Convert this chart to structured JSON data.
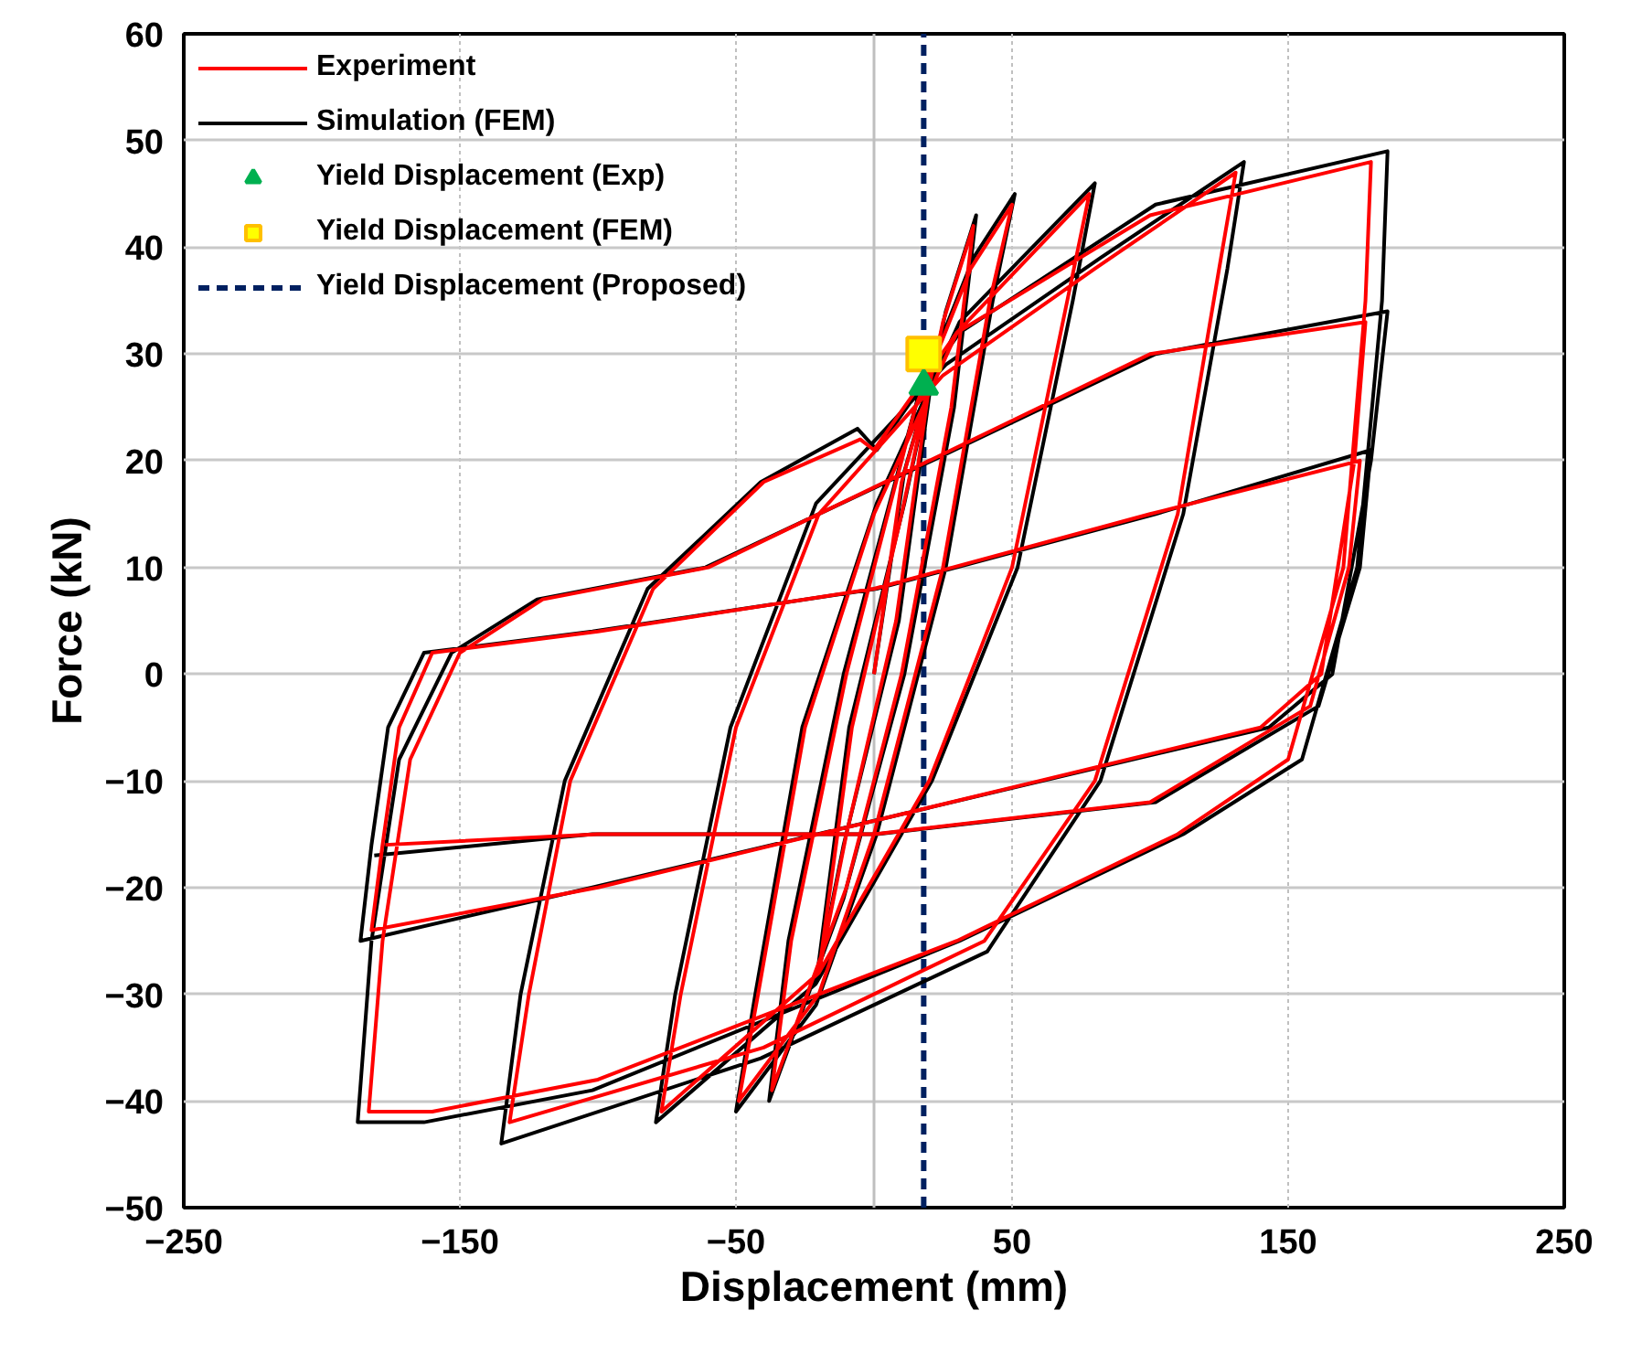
{
  "chart_data": {
    "type": "line",
    "xlabel": "Displacement (mm)",
    "ylabel": "Force (kN)",
    "xlim": [
      -250,
      250
    ],
    "ylim": [
      -50,
      60
    ],
    "xticks": [
      -250,
      -150,
      -50,
      50,
      150,
      250
    ],
    "yticks": [
      -50,
      -40,
      -30,
      -20,
      -10,
      0,
      10,
      20,
      30,
      40,
      50,
      60
    ],
    "grid": true,
    "legend": "top left",
    "series": [
      {
        "name": "Experiment",
        "type": "line",
        "color": "#ff0000",
        "x": [
          0,
          10,
          20,
          8,
          -10,
          -20,
          -8,
          10,
          25,
          36,
          28,
          10,
          -10,
          -37,
          -30,
          -10,
          15,
          35,
          50,
          42,
          25,
          0,
          -20,
          -49,
          -42,
          -25,
          0,
          30,
          78,
          70,
          50,
          20,
          -20,
          -77,
          -70,
          -50,
          -20,
          25,
          80,
          131,
          125,
          110,
          80,
          40,
          -40,
          -132,
          -125,
          -110,
          -80,
          -40,
          -5,
          0,
          30,
          100,
          180,
          178,
          170,
          150,
          110,
          30,
          -100,
          -160,
          -183,
          -178,
          -168,
          -150,
          -120,
          -60,
          20,
          100,
          178,
          174,
          162,
          140,
          60,
          -100,
          -182,
          -178,
          -172,
          -160,
          -100,
          0,
          100,
          176,
          172,
          158,
          100,
          0,
          -100,
          -177
        ],
        "values": [
          0,
          18,
          27,
          5,
          -15,
          -28,
          -5,
          15,
          33,
          42,
          25,
          0,
          -20,
          -39,
          -25,
          0,
          25,
          38,
          44,
          35,
          10,
          -15,
          -30,
          -40,
          -30,
          -5,
          15,
          32,
          45,
          35,
          10,
          -10,
          -28,
          -41,
          -30,
          -5,
          15,
          28,
          38,
          47,
          38,
          15,
          -10,
          -25,
          -35,
          -42,
          -30,
          -10,
          8,
          18,
          22,
          21,
          32,
          43,
          48,
          35,
          10,
          -8,
          -15,
          -25,
          -38,
          -41,
          -41,
          -25,
          -8,
          2,
          7,
          10,
          20,
          30,
          33,
          20,
          0,
          -5,
          -10,
          -20,
          -24,
          -16,
          -5,
          2,
          4,
          8,
          15,
          20,
          10,
          -3,
          -12,
          -15,
          -15,
          -16
        ]
      },
      {
        "name": "Simulation (FEM)",
        "type": "line",
        "color": "#000000",
        "x": [
          0,
          11,
          21,
          9,
          -11,
          -21,
          -9,
          11,
          26,
          37,
          29,
          11,
          -11,
          -38,
          -31,
          -11,
          16,
          36,
          51,
          43,
          26,
          1,
          -21,
          -50,
          -43,
          -26,
          1,
          31,
          80,
          72,
          52,
          21,
          -21,
          -79,
          -72,
          -52,
          -21,
          26,
          82,
          134,
          128,
          112,
          82,
          41,
          -41,
          -135,
          -128,
          -112,
          -82,
          -41,
          -6,
          1,
          31,
          102,
          186,
          184,
          175,
          155,
          112,
          31,
          -102,
          -163,
          -187,
          -182,
          -172,
          -153,
          -122,
          -61,
          21,
          102,
          186,
          180,
          166,
          143,
          61,
          -102,
          -186,
          -182,
          -176,
          -163,
          -102,
          1,
          102,
          180,
          176,
          161,
          102,
          1,
          -102,
          -181
        ],
        "values": [
          0,
          19,
          28,
          5,
          -16,
          -29,
          -5,
          16,
          34,
          43,
          25,
          0,
          -21,
          -40,
          -25,
          0,
          26,
          39,
          45,
          35,
          10,
          -15,
          -31,
          -41,
          -30,
          -5,
          16,
          33,
          46,
          35,
          10,
          -10,
          -29,
          -42,
          -30,
          -5,
          16,
          29,
          39,
          48,
          38,
          15,
          -10,
          -26,
          -36,
          -44,
          -30,
          -10,
          8,
          18,
          23,
          21,
          32,
          44,
          49,
          35,
          10,
          -8,
          -15,
          -25,
          -39,
          -42,
          -42,
          -25,
          -8,
          2,
          7,
          10,
          20,
          30,
          34,
          20,
          0,
          -5,
          -10,
          -20,
          -25,
          -16,
          -5,
          2,
          4,
          8,
          15,
          21,
          10,
          -3,
          -12,
          -15,
          -15,
          -17
        ]
      },
      {
        "name": "Yield Displacement (Exp)",
        "type": "scatter",
        "marker": "triangle",
        "color": "#00b050",
        "x": [
          18
        ],
        "values": [
          27
        ]
      },
      {
        "name": "Yield Displacement (FEM)",
        "type": "scatter",
        "marker": "square",
        "color": "#ffff00",
        "x": [
          18
        ],
        "values": [
          30
        ]
      },
      {
        "name": "Yield Displacement (Proposed)",
        "type": "line",
        "line_style": "dashed",
        "color": "#002060",
        "x": [
          18,
          18
        ],
        "values": [
          -50,
          60
        ]
      }
    ],
    "ref_lines": [
      {
        "axis": "x",
        "value": 0,
        "color": "#bfbfbf",
        "line_style": "solid"
      }
    ]
  }
}
